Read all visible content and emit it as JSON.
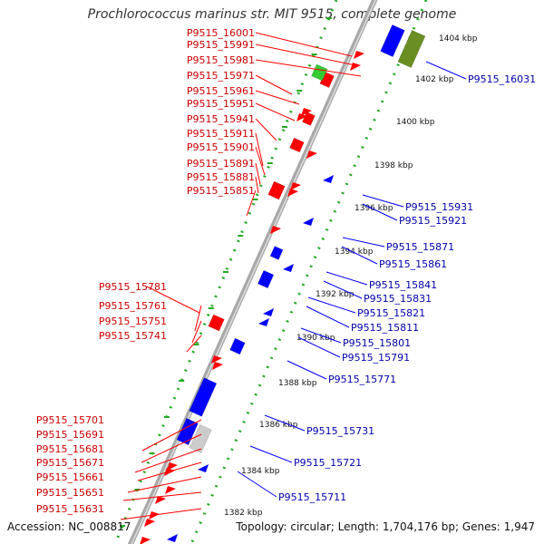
{
  "title": "Prochlorococcus marinus str. MIT 9515, complete genome",
  "accession": "Accession: NC_008817",
  "summary": "Topology: circular; Length: 1,704,176 bp; Genes: 1,947",
  "colors": {
    "forward": "#ff0000",
    "reverse": "#0000ff",
    "label_forward": "#cc0000",
    "label_reverse": "#0000aa",
    "rna": "#33cc33",
    "pseudo_grey": "#cccccc",
    "olive": "#6b8e23",
    "axis": "#888888",
    "ticks": "#22aa22"
  },
  "scale_labels": [
    "1404 kbp",
    "1402 kbp",
    "1400 kbp",
    "1398 kbp",
    "1396 kbp",
    "1394 kbp",
    "1392 kbp",
    "1390 kbp",
    "1388 kbp",
    "1386 kbp",
    "1384 kbp",
    "1382 kbp"
  ],
  "left_labels": [
    "P9515_16001",
    "P9515_15991",
    "P9515_15981",
    "P9515_15971",
    "P9515_15961",
    "P9515_15951",
    "P9515_15941",
    "P9515_15911",
    "P9515_15901",
    "P9515_15891",
    "P9515_15881",
    "P9515_15851",
    "P9515_15781",
    "P9515_15761",
    "P9515_15751",
    "P9515_15741",
    "P9515_15701",
    "P9515_15691",
    "P9515_15681",
    "P9515_15671",
    "P9515_15661",
    "P9515_15651",
    "P9515_15631"
  ],
  "right_labels": [
    "P9515_16031",
    "P9515_15931",
    "P9515_15921",
    "P9515_15871",
    "P9515_15861",
    "P9515_15841",
    "P9515_15831",
    "P9515_15821",
    "P9515_15811",
    "P9515_15801",
    "P9515_15791",
    "P9515_15771",
    "P9515_15731",
    "P9515_15721",
    "P9515_15711"
  ]
}
